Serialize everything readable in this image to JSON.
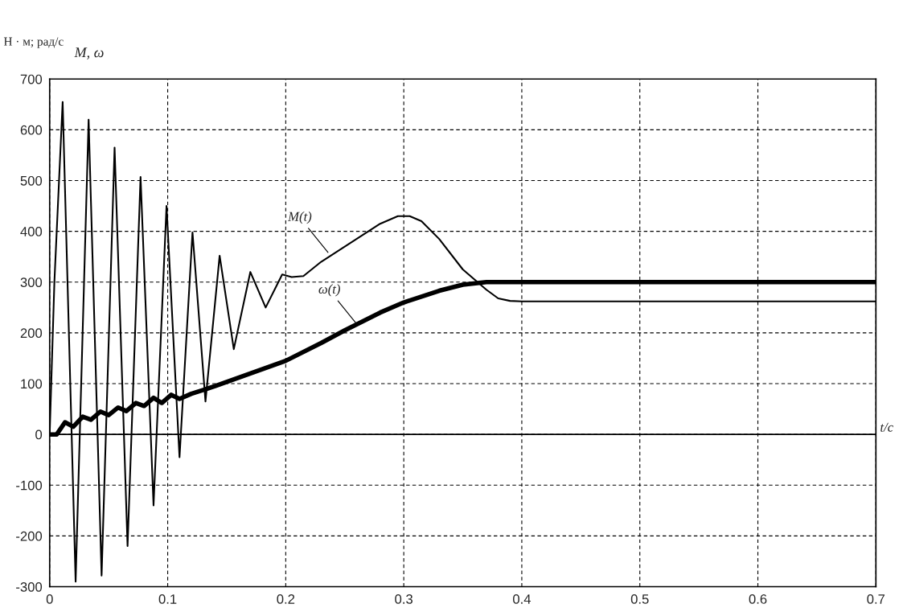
{
  "chart_data": {
    "type": "line",
    "xlabel": "t/с",
    "ylabel": "M, ω",
    "xlim": [
      0,
      0.7
    ],
    "ylim": [
      -300,
      700
    ],
    "xticks": [
      0,
      0.1,
      0.2,
      0.3,
      0.4,
      0.5,
      0.6,
      0.7
    ],
    "yticks": [
      -300,
      -200,
      -100,
      0,
      100,
      200,
      300,
      400,
      500,
      600,
      700
    ],
    "grid": true,
    "line_style": "solid",
    "marker": "none",
    "legend": false,
    "ref_lines": [
      {
        "axis": "y",
        "value": 0,
        "color": "#000000",
        "line_style": "solid"
      }
    ],
    "annotations": [
      "Н · м; рад/с",
      {
        "text": "M(t)",
        "x": 0.237,
        "y": 355
      },
      {
        "text": "ω(t)",
        "x": 0.262,
        "y": 212
      }
    ],
    "series": [
      {
        "color": "#000000",
        "x": [
          0,
          0.004,
          0.011,
          0.022,
          0.033,
          0.044,
          0.055,
          0.066,
          0.077,
          0.088,
          0.099,
          0.11,
          0.121,
          0.132,
          0.144,
          0.156,
          0.17,
          0.183,
          0.197,
          0.205,
          0.215,
          0.23,
          0.26,
          0.28,
          0.295,
          0.305,
          0.315,
          0.33,
          0.35,
          0.37,
          0.38,
          0.39,
          0.4,
          0.7
        ],
        "values": [
          0,
          300,
          655,
          -290,
          620,
          -278,
          565,
          -220,
          507,
          -140,
          450,
          -45,
          398,
          65,
          352,
          168,
          320,
          250,
          315,
          310,
          312,
          340,
          385,
          415,
          430,
          430,
          420,
          385,
          325,
          285,
          268,
          263,
          262,
          262
        ]
      },
      {
        "color": "#000000",
        "x": [
          0,
          0.006,
          0.013,
          0.02,
          0.028,
          0.035,
          0.043,
          0.05,
          0.058,
          0.065,
          0.073,
          0.08,
          0.088,
          0.095,
          0.103,
          0.11,
          0.12,
          0.14,
          0.17,
          0.2,
          0.23,
          0.25,
          0.28,
          0.3,
          0.33,
          0.35,
          0.37,
          0.7
        ],
        "values": [
          0,
          0,
          24,
          15,
          35,
          29,
          45,
          38,
          53,
          46,
          62,
          56,
          72,
          62,
          78,
          70,
          80,
          95,
          120,
          145,
          180,
          205,
          240,
          260,
          283,
          295,
          300,
          300
        ]
      }
    ]
  }
}
